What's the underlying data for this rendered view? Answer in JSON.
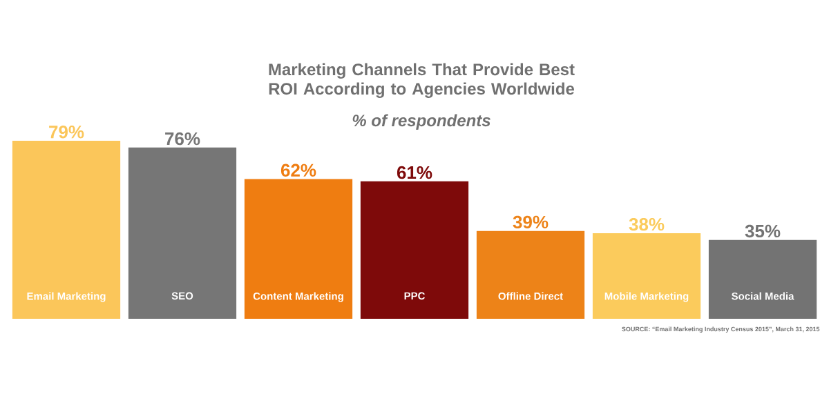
{
  "chart_data": {
    "type": "bar",
    "title": "Marketing Channels That Provide Best ROI According to Agencies Worldwide",
    "subtitle": "% of respondents",
    "categories": [
      "Email Marketing",
      "SEO",
      "Content Marketing",
      "PPC",
      "Offline Direct",
      "Mobile Marketing",
      "Social Media"
    ],
    "values": [
      79,
      76,
      62,
      61,
      39,
      38,
      35
    ],
    "value_labels": [
      "79%",
      "76%",
      "62%",
      "61%",
      "39%",
      "38%",
      "35%"
    ],
    "colors": [
      "#fbc65a",
      "#767676",
      "#ef7d11",
      "#7e0a0a",
      "#ed8318",
      "#fbcb5c",
      "#737373"
    ],
    "annotations": [
      "SOURCE: “Email Marketing Industry Census 2015”, March 31, 2015"
    ]
  }
}
